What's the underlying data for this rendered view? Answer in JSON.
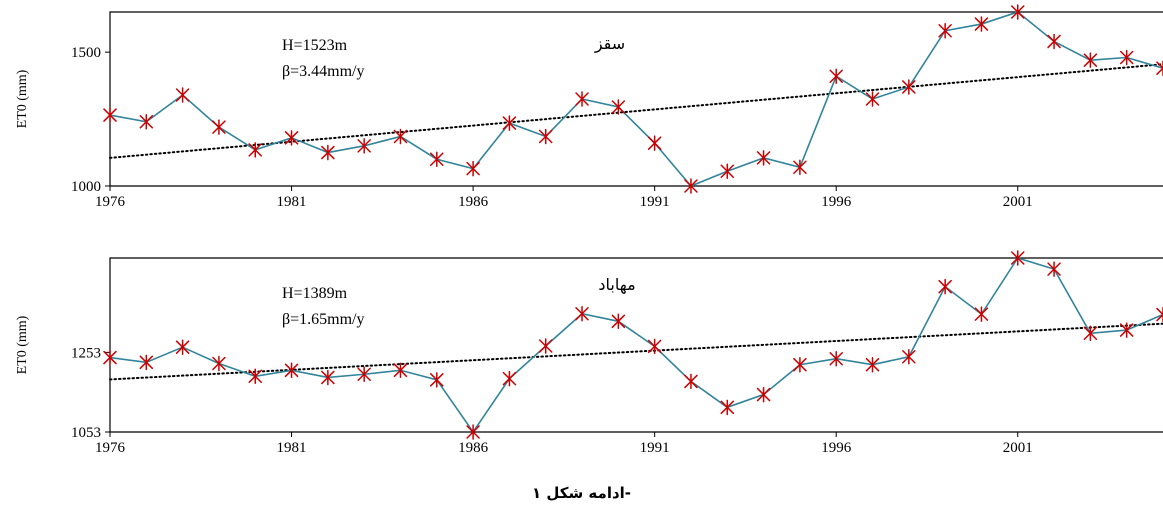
{
  "caption": "ادامه شکل ۱-",
  "colors": {
    "line": "#31849B",
    "marker": "#CC0000",
    "trend": "#000000"
  },
  "chart_data": [
    {
      "type": "line",
      "title": "سقز",
      "annotations": [
        "H=1523m",
        "β=3.44mm/y"
      ],
      "ylabel": "ET0 (mm)",
      "xlabel": "",
      "xlim": [
        1976,
        2005
      ],
      "ylim": [
        1000,
        1650
      ],
      "xticks": [
        1976,
        1981,
        1986,
        1991,
        1996,
        2001
      ],
      "yticks": [
        1000,
        1500
      ],
      "x": [
        1976,
        1977,
        1978,
        1979,
        1980,
        1981,
        1982,
        1983,
        1984,
        1985,
        1986,
        1987,
        1988,
        1989,
        1990,
        1991,
        1992,
        1993,
        1994,
        1995,
        1996,
        1997,
        1998,
        1999,
        2000,
        2001,
        2002,
        2003,
        2004,
        2005
      ],
      "values": [
        1265,
        1240,
        1340,
        1220,
        1135,
        1180,
        1125,
        1150,
        1185,
        1100,
        1065,
        1235,
        1185,
        1325,
        1295,
        1160,
        1000,
        1055,
        1105,
        1070,
        1410,
        1325,
        1370,
        1580,
        1605,
        1650,
        1540,
        1470,
        1480,
        1440
      ],
      "trend": [
        1105,
        1455
      ],
      "grid": false
    },
    {
      "type": "line",
      "title": "مهاباد",
      "annotations": [
        "H=1389m",
        "β=1.65mm/y"
      ],
      "ylabel": "ET0 (mm)",
      "xlabel": "",
      "xlim": [
        1976,
        2005
      ],
      "ylim": [
        1053,
        1490
      ],
      "xticks": [
        1976,
        1981,
        1986,
        1991,
        1996,
        2001
      ],
      "yticks": [
        1053,
        1253
      ],
      "x": [
        1976,
        1977,
        1978,
        1979,
        1980,
        1981,
        1982,
        1983,
        1984,
        1985,
        1986,
        1987,
        1988,
        1989,
        1990,
        1991,
        1992,
        1993,
        1994,
        1995,
        1996,
        1997,
        1998,
        1999,
        2000,
        2001,
        2002,
        2003,
        2004,
        2005
      ],
      "values": [
        1240,
        1228,
        1266,
        1225,
        1193,
        1208,
        1190,
        1198,
        1208,
        1184,
        1053,
        1187,
        1269,
        1350,
        1331,
        1268,
        1180,
        1115,
        1147,
        1222,
        1237,
        1222,
        1242,
        1418,
        1349,
        1490,
        1462,
        1301,
        1309,
        1348
      ],
      "trend": [
        1185,
        1325
      ],
      "grid": false
    }
  ]
}
